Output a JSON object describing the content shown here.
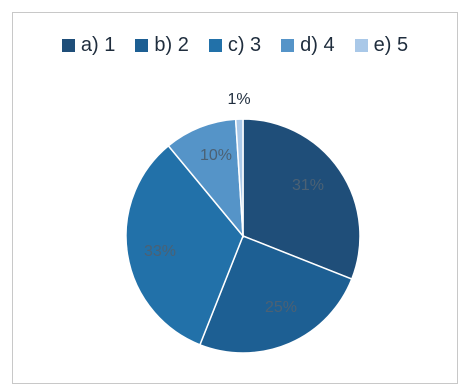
{
  "chart_data": {
    "type": "pie",
    "categories": [
      "a) 1",
      "b) 2",
      "c) 3",
      "d) 4",
      "e) 5"
    ],
    "values": [
      31,
      25,
      33,
      10,
      1
    ],
    "data_labels": [
      "31%",
      "25%",
      "33%",
      "10%",
      "1%"
    ],
    "colors": [
      "#1f4e79",
      "#1d5f93",
      "#2271a9",
      "#5594c8",
      "#a9c8e8"
    ],
    "legend": "top"
  }
}
